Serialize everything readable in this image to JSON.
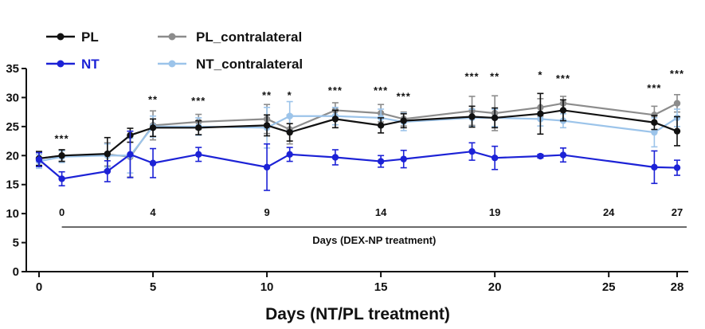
{
  "chart_data": {
    "type": "line",
    "title": "",
    "xlabel": "Days (NT/PL treatment)",
    "ylabel": "",
    "xlim": [
      0,
      28
    ],
    "ylim": [
      0,
      35
    ],
    "xticks": [
      0,
      5,
      10,
      15,
      20,
      25,
      28
    ],
    "yticks": [
      0,
      5,
      10,
      15,
      20,
      25,
      30,
      35
    ],
    "secondary_axis": {
      "label": "Days (DEX-NP treatment)",
      "ticks": [
        {
          "label": "0",
          "x": 1
        },
        {
          "label": "4",
          "x": 5
        },
        {
          "label": "9",
          "x": 10
        },
        {
          "label": "14",
          "x": 15
        },
        {
          "label": "19",
          "x": 20
        },
        {
          "label": "24",
          "x": 25
        },
        {
          "label": "27",
          "x": 28
        }
      ]
    },
    "series": [
      {
        "name": "PL_contralateral",
        "color": "#8c8c8c",
        "points": [
          {
            "x": 0,
            "y": 19.5,
            "err": 1.2
          },
          {
            "x": 1,
            "y": 20.0,
            "err": 1.0
          },
          {
            "x": 3,
            "y": 20.2,
            "err": 2.0
          },
          {
            "x": 4,
            "y": 19.8,
            "err": 3.5
          },
          {
            "x": 5,
            "y": 25.2,
            "err": 2.5
          },
          {
            "x": 7,
            "y": 25.8,
            "err": 1.3
          },
          {
            "x": 10,
            "y": 26.3,
            "err": 2.5
          },
          {
            "x": 11,
            "y": 24.5,
            "err": 2.5
          },
          {
            "x": 13,
            "y": 27.8,
            "err": 1.3
          },
          {
            "x": 15,
            "y": 27.3,
            "err": 1.5
          },
          {
            "x": 16,
            "y": 26.3,
            "err": 1.2
          },
          {
            "x": 19,
            "y": 27.7,
            "err": 2.5
          },
          {
            "x": 20,
            "y": 27.3,
            "err": 3.0
          },
          {
            "x": 22,
            "y": 28.3,
            "err": 1.5
          },
          {
            "x": 23,
            "y": 29.0,
            "err": 1.2
          },
          {
            "x": 27,
            "y": 27.0,
            "err": 1.5
          },
          {
            "x": 28,
            "y": 29.0,
            "err": 1.5
          }
        ]
      },
      {
        "name": "NT_contralateral",
        "color": "#9cc4ea",
        "points": [
          {
            "x": 0,
            "y": 19.0,
            "err": 1.2
          },
          {
            "x": 1,
            "y": 19.8,
            "err": 1.0
          },
          {
            "x": 3,
            "y": 20.0,
            "err": 2.0
          },
          {
            "x": 4,
            "y": 20.0,
            "err": 3.0
          },
          {
            "x": 5,
            "y": 25.0,
            "err": 1.8
          },
          {
            "x": 7,
            "y": 25.0,
            "err": 1.5
          },
          {
            "x": 10,
            "y": 24.8,
            "err": 3.5
          },
          {
            "x": 11,
            "y": 26.8,
            "err": 2.5
          },
          {
            "x": 13,
            "y": 26.8,
            "err": 1.5
          },
          {
            "x": 15,
            "y": 26.5,
            "err": 1.5
          },
          {
            "x": 16,
            "y": 25.8,
            "err": 1.5
          },
          {
            "x": 19,
            "y": 26.5,
            "err": 1.5
          },
          {
            "x": 20,
            "y": 26.5,
            "err": 1.5
          },
          {
            "x": 22,
            "y": 26.3,
            "err": 1.2
          },
          {
            "x": 23,
            "y": 26.0,
            "err": 1.2
          },
          {
            "x": 27,
            "y": 24.0,
            "err": 2.5
          },
          {
            "x": 28,
            "y": 26.5,
            "err": 1.5
          }
        ]
      },
      {
        "name": "PL",
        "color": "#111111",
        "points": [
          {
            "x": 0,
            "y": 19.5,
            "err": 1.2
          },
          {
            "x": 1,
            "y": 20.0,
            "err": 1.0
          },
          {
            "x": 3,
            "y": 20.3,
            "err": 2.8
          },
          {
            "x": 4,
            "y": 23.5,
            "err": 1.2
          },
          {
            "x": 5,
            "y": 24.8,
            "err": 1.5
          },
          {
            "x": 7,
            "y": 24.8,
            "err": 1.2
          },
          {
            "x": 10,
            "y": 25.2,
            "err": 1.8
          },
          {
            "x": 11,
            "y": 24.0,
            "err": 1.5
          },
          {
            "x": 13,
            "y": 26.3,
            "err": 1.5
          },
          {
            "x": 15,
            "y": 25.2,
            "err": 1.3
          },
          {
            "x": 16,
            "y": 26.0,
            "err": 1.2
          },
          {
            "x": 19,
            "y": 26.7,
            "err": 1.8
          },
          {
            "x": 20,
            "y": 26.5,
            "err": 1.7
          },
          {
            "x": 22,
            "y": 27.2,
            "err": 3.5
          },
          {
            "x": 23,
            "y": 27.8,
            "err": 1.8
          },
          {
            "x": 27,
            "y": 25.7,
            "err": 1.2
          },
          {
            "x": 28,
            "y": 24.2,
            "err": 2.5
          }
        ]
      },
      {
        "name": "NT",
        "color": "#1c22d6",
        "points": [
          {
            "x": 0,
            "y": 19.3,
            "err": 1.2
          },
          {
            "x": 1,
            "y": 16.0,
            "err": 1.2
          },
          {
            "x": 3,
            "y": 17.3,
            "err": 1.8
          },
          {
            "x": 4,
            "y": 20.2,
            "err": 4.0
          },
          {
            "x": 5,
            "y": 18.7,
            "err": 2.5
          },
          {
            "x": 7,
            "y": 20.2,
            "err": 1.2
          },
          {
            "x": 10,
            "y": 18.0,
            "err": 4.0
          },
          {
            "x": 11,
            "y": 20.2,
            "err": 1.2
          },
          {
            "x": 13,
            "y": 19.7,
            "err": 1.3
          },
          {
            "x": 15,
            "y": 19.0,
            "err": 1.0
          },
          {
            "x": 16,
            "y": 19.4,
            "err": 1.5
          },
          {
            "x": 19,
            "y": 20.7,
            "err": 1.5
          },
          {
            "x": 20,
            "y": 19.6,
            "err": 2.0
          },
          {
            "x": 22,
            "y": 19.9,
            "err": 0.3
          },
          {
            "x": 23,
            "y": 20.1,
            "err": 1.2
          },
          {
            "x": 27,
            "y": 18.0,
            "err": 2.8
          },
          {
            "x": 28,
            "y": 17.9,
            "err": 1.3
          }
        ]
      }
    ],
    "legend": [
      "PL",
      "NT",
      "PL_contralateral",
      "NT_contralateral"
    ],
    "legend_position": "top-left",
    "annotations": [
      {
        "x": 1,
        "y": 22.3,
        "text": "***"
      },
      {
        "x": 5,
        "y": 29.0,
        "text": "**"
      },
      {
        "x": 7,
        "y": 28.8,
        "text": "***"
      },
      {
        "x": 10,
        "y": 29.8,
        "text": "**"
      },
      {
        "x": 11,
        "y": 29.8,
        "text": "*"
      },
      {
        "x": 13,
        "y": 30.6,
        "text": "***"
      },
      {
        "x": 15,
        "y": 30.6,
        "text": "***"
      },
      {
        "x": 16,
        "y": 29.6,
        "text": "***"
      },
      {
        "x": 19,
        "y": 33.0,
        "text": "***"
      },
      {
        "x": 20,
        "y": 33.0,
        "text": "**"
      },
      {
        "x": 22,
        "y": 33.3,
        "text": "*"
      },
      {
        "x": 23,
        "y": 32.7,
        "text": "***"
      },
      {
        "x": 27,
        "y": 31.0,
        "text": "***"
      },
      {
        "x": 28,
        "y": 33.5,
        "text": "***"
      }
    ]
  }
}
